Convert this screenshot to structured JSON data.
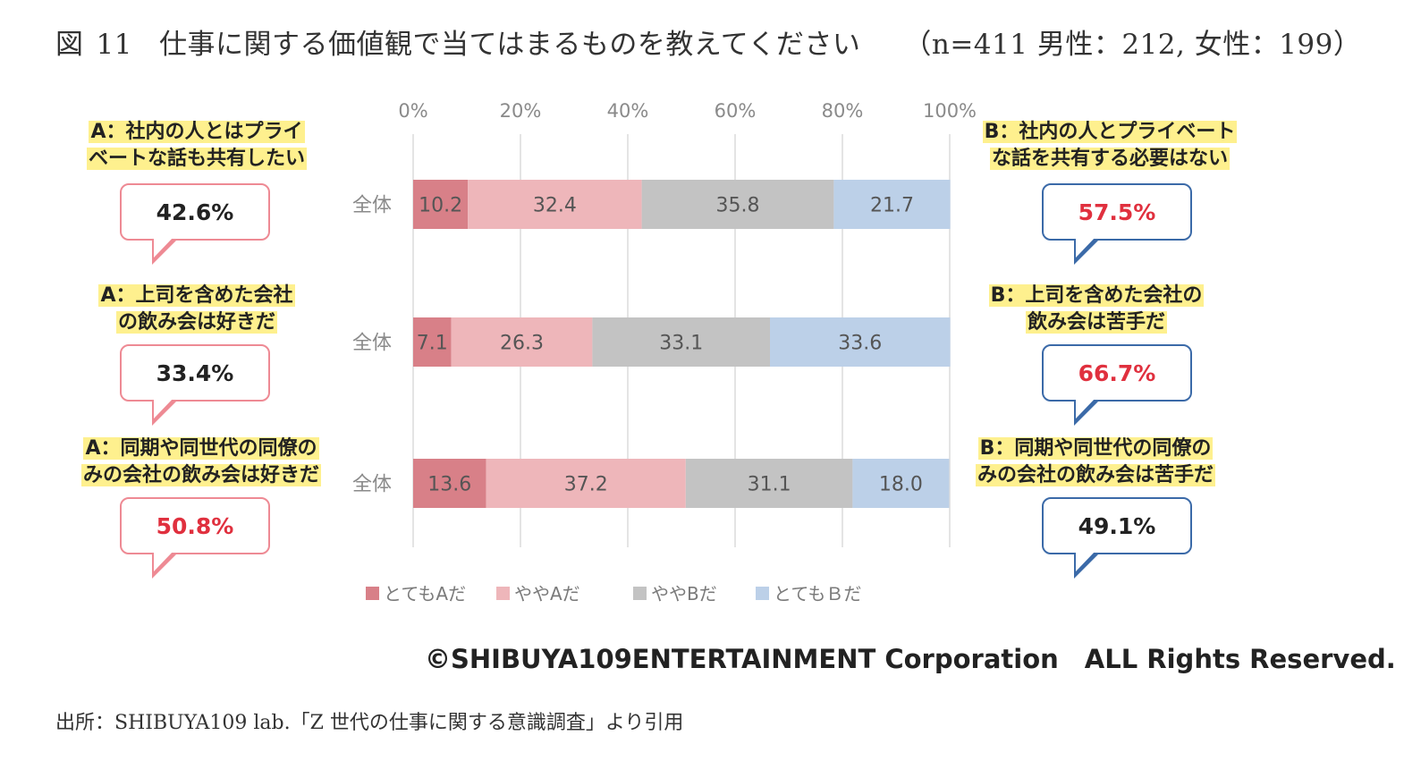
{
  "figure": {
    "label": "図",
    "number": "11",
    "title": "仕事に関する価値観で当てはまるものを教えてください",
    "sample": "（n=411  男性：212,  女性：199）"
  },
  "chart_data": {
    "type": "bar",
    "stacked": true,
    "orientation": "horizontal",
    "categories": [
      "全体",
      "全体",
      "全体"
    ],
    "series": [
      {
        "name": "とてもAだ",
        "values": [
          10.2,
          7.1,
          13.6
        ]
      },
      {
        "name": "ややAだ",
        "values": [
          32.4,
          26.3,
          37.2
        ]
      },
      {
        "name": "ややBだ",
        "values": [
          35.8,
          33.1,
          31.1
        ]
      },
      {
        "name": "とてもＢだ",
        "values": [
          21.7,
          33.6,
          18.0
        ]
      }
    ],
    "xlim": [
      0,
      100
    ],
    "x_ticks": [
      "0%",
      "20%",
      "40%",
      "60%",
      "80%",
      "100%"
    ],
    "legend_position": "bottom",
    "grid": true,
    "colors": [
      "#d88088",
      "#eeb6ba",
      "#c3c3c3",
      "#bcd0e8"
    ]
  },
  "annotations": [
    {
      "a_label": [
        "A：社内の人とはプライ",
        "ベートな話も共有したい"
      ],
      "a_value": "42.6%",
      "a_highlight": false,
      "b_label": [
        "B：社内の人とプライベート",
        "な話を共有する必要はない"
      ],
      "b_value": "57.5%",
      "b_highlight": true
    },
    {
      "a_label": [
        "A：上司を含めた会社",
        "の飲み会は好きだ"
      ],
      "a_value": "33.4%",
      "a_highlight": false,
      "b_label": [
        "B：上司を含めた会社の",
        "飲み会は苦手だ"
      ],
      "b_value": "66.7%",
      "b_highlight": true
    },
    {
      "a_label": [
        "A：同期や同世代の同僚の",
        "みの会社の飲み会は好きだ"
      ],
      "a_value": "50.8%",
      "a_highlight": true,
      "b_label": [
        "B：同期や同世代の同僚の",
        "みの会社の飲み会は苦手だ"
      ],
      "b_value": "49.1%",
      "b_highlight": false
    }
  ],
  "copyright": "©SHIBUYA109ENTERTAINMENT Corporation　ALL Rights Reserved.",
  "source": "出所：SHIBUYA109 lab.「Z 世代の仕事に関する意識調査」より引用"
}
